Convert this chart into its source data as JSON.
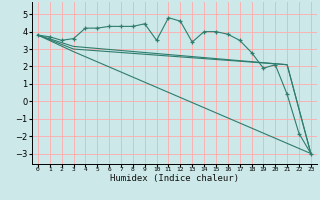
{
  "title": "",
  "xlabel": "Humidex (Indice chaleur)",
  "ylabel": "",
  "bg_color": "#cce8e8",
  "grid_color": "#ffaaaa",
  "line_color": "#2e7d6e",
  "xlim": [
    -0.5,
    23.5
  ],
  "ylim": [
    -3.6,
    5.7
  ],
  "yticks": [
    -3,
    -2,
    -1,
    0,
    1,
    2,
    3,
    4,
    5
  ],
  "xticks": [
    0,
    1,
    2,
    3,
    4,
    5,
    6,
    7,
    8,
    9,
    10,
    11,
    12,
    13,
    14,
    15,
    16,
    17,
    18,
    19,
    20,
    21,
    22,
    23
  ],
  "series": [
    {
      "x": [
        0,
        1,
        2,
        3,
        4,
        5,
        6,
        7,
        8,
        9,
        10,
        11,
        12,
        13,
        14,
        15,
        16,
        17,
        18,
        19,
        20,
        21,
        22,
        23
      ],
      "y": [
        3.8,
        3.7,
        3.5,
        3.6,
        4.2,
        4.2,
        4.3,
        4.3,
        4.3,
        4.45,
        3.5,
        4.8,
        4.6,
        3.4,
        4.0,
        4.0,
        3.85,
        3.5,
        2.8,
        1.9,
        2.1,
        0.4,
        -1.85,
        -3.0
      ],
      "has_markers": true
    },
    {
      "x": [
        0,
        3,
        21,
        23
      ],
      "y": [
        3.8,
        3.15,
        2.1,
        -3.0
      ],
      "has_markers": false
    },
    {
      "x": [
        0,
        3,
        21,
        23
      ],
      "y": [
        3.8,
        3.0,
        2.1,
        -3.0
      ],
      "has_markers": false
    },
    {
      "x": [
        0,
        3,
        23
      ],
      "y": [
        3.8,
        2.85,
        -3.0
      ],
      "has_markers": false
    }
  ]
}
